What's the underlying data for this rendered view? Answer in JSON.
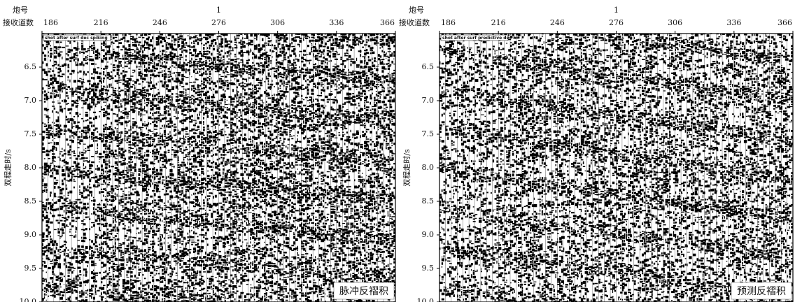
{
  "chart_data": [
    {
      "type": "seismic",
      "title": "1",
      "shot_label": "炮号",
      "x_label": "接收道数",
      "y_label": "双程走时/s",
      "annotation": "shot after surf dec spiking",
      "panel_label": "脉冲反褶积",
      "xlim": [
        186,
        366
      ],
      "xticks": [
        186,
        216,
        246,
        276,
        306,
        336,
        366
      ],
      "ylim": [
        6.0,
        10.0
      ],
      "yticks": [
        6.5,
        {
          "value": 7,
          "label": "7.0"
        },
        7.5,
        {
          "value": 8,
          "label": "8.0"
        },
        8.5,
        {
          "value": 9,
          "label": "9.0"
        },
        9.5,
        {
          "value": 10,
          "label": "10.0"
        }
      ]
    },
    {
      "type": "seismic",
      "title": "1",
      "shot_label": "炮号",
      "x_label": "接收道数",
      "y_label": "双程走时/s",
      "annotation": "shot after surf predictive dec b",
      "panel_label": "预测反褶积",
      "xlim": [
        186,
        366
      ],
      "xticks": [
        186,
        216,
        246,
        276,
        306,
        336,
        366
      ],
      "ylim": [
        6.0,
        10.0
      ],
      "yticks": [
        6.5,
        {
          "value": 7,
          "label": "7.0"
        },
        7.5,
        {
          "value": 8,
          "label": "8.0"
        },
        8.5,
        {
          "value": 9,
          "label": "9.0"
        },
        9.5,
        {
          "value": 10,
          "label": "10.0"
        }
      ]
    }
  ]
}
